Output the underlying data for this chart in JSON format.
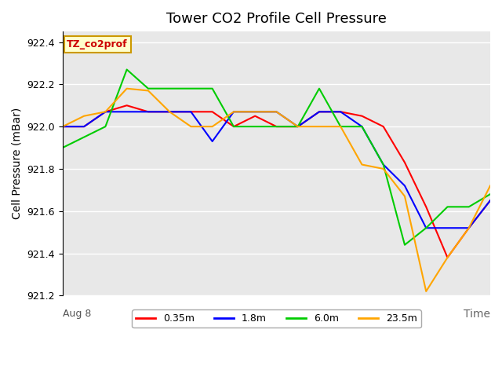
{
  "title": "Tower CO2 Profile Cell Pressure",
  "ylabel": "Cell Pressure (mBar)",
  "xlabel": "Time",
  "x_start_label": "Aug 8",
  "ylim": [
    921.2,
    922.45
  ],
  "background_color": "#e8e8e8",
  "figure_bg": "#ffffff",
  "legend_label": "TZ_co2prof",
  "legend_bg": "#ffffcc",
  "legend_border": "#cc9900",
  "series": [
    {
      "label": "0.35m",
      "color": "#ff0000",
      "y": [
        922.0,
        922.0,
        922.07,
        922.1,
        922.07,
        922.07,
        922.07,
        922.07,
        922.0,
        922.05,
        922.0,
        922.0,
        922.07,
        922.07,
        922.05,
        922.0,
        921.83,
        921.62,
        921.38,
        921.52,
        921.65
      ]
    },
    {
      "label": "1.8m",
      "color": "#0000ff",
      "y": [
        922.0,
        922.0,
        922.07,
        922.07,
        922.07,
        922.07,
        922.07,
        921.93,
        922.07,
        922.07,
        922.07,
        922.0,
        922.07,
        922.07,
        922.0,
        921.82,
        921.72,
        921.52,
        921.52,
        921.52,
        921.65
      ]
    },
    {
      "label": "6.0m",
      "color": "#00cc00",
      "y": [
        921.9,
        921.95,
        922.0,
        922.27,
        922.18,
        922.18,
        922.18,
        922.18,
        922.0,
        922.0,
        922.0,
        922.0,
        922.18,
        922.0,
        922.0,
        921.82,
        921.44,
        921.52,
        921.62,
        921.62,
        921.68
      ]
    },
    {
      "label": "23.5m",
      "color": "#ffa500",
      "y": [
        922.0,
        922.05,
        922.07,
        922.18,
        922.17,
        922.07,
        922.0,
        922.0,
        922.07,
        922.07,
        922.07,
        922.0,
        922.0,
        922.0,
        921.82,
        921.8,
        921.67,
        921.22,
        921.38,
        921.52,
        921.72
      ]
    }
  ],
  "yticks": [
    921.2,
    921.4,
    921.6,
    921.8,
    922.0,
    922.2,
    922.4
  ],
  "grid_color": "#ffffff",
  "title_fontsize": 13,
  "axis_fontsize": 10,
  "tick_fontsize": 9,
  "legend_fontsize": 9
}
